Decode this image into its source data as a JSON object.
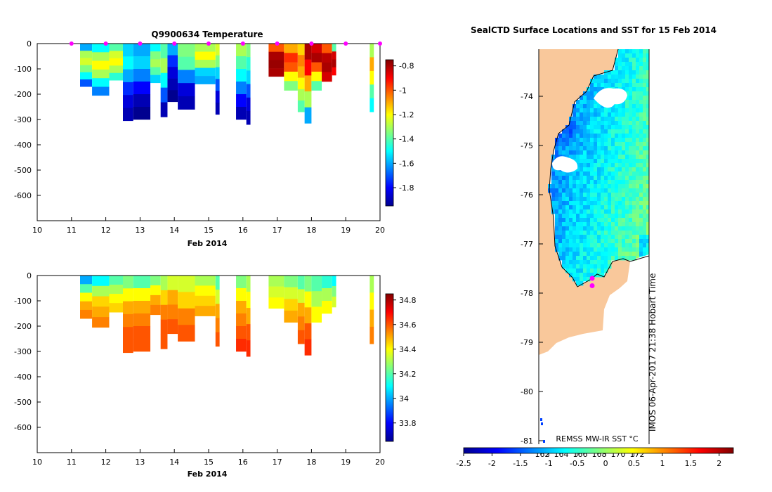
{
  "colors": {
    "land": "#f9c89b",
    "marker": "#ff00ff",
    "jet": [
      "#00008f",
      "#0000ff",
      "#0080ff",
      "#00ffff",
      "#80ff80",
      "#ffff00",
      "#ff8000",
      "#ff0000",
      "#800000"
    ]
  },
  "chart_data": [
    {
      "type": "heatmap",
      "title": "Q9900634  Temperature",
      "xlabel": "Feb 2014",
      "ylabel": "",
      "xticks": [
        "10",
        "11",
        "12",
        "13",
        "14",
        "15",
        "16",
        "17",
        "18",
        "19",
        "20"
      ],
      "yticks": [
        "0",
        "-100",
        "-200",
        "-300",
        "-400",
        "-500",
        "-600"
      ],
      "xlim": [
        10,
        20
      ],
      "ylim": [
        -700,
        0
      ],
      "colorbar": {
        "ticks": [
          "-0.8",
          "-1",
          "-1.2",
          "-1.4",
          "-1.6",
          "-1.8"
        ],
        "range": [
          -1.95,
          -0.75
        ]
      },
      "profiles": [
        {
          "t": 11.25,
          "depth": 170,
          "values": [
            -1.6,
            -1.3,
            -1.25,
            -1.35,
            -1.5,
            -1.7
          ]
        },
        {
          "t": 11.6,
          "depth": 205,
          "values": [
            -1.5,
            -1.3,
            -1.2,
            -1.3,
            -1.5,
            -1.65
          ]
        },
        {
          "t": 12.1,
          "depth": 145,
          "values": [
            -1.4,
            -1.25,
            -1.2,
            -1.3,
            -1.45
          ]
        },
        {
          "t": 12.5,
          "depth": 305,
          "values": [
            -1.55,
            -1.5,
            -1.6,
            -1.75,
            -1.85,
            -1.9
          ]
        },
        {
          "t": 12.8,
          "depth": 300,
          "values": [
            -1.6,
            -1.55,
            -1.65,
            -1.8,
            -1.9,
            -1.95
          ]
        },
        {
          "t": 13.3,
          "depth": 155,
          "values": [
            -1.5,
            -1.35,
            -1.3,
            -1.4,
            -1.55
          ]
        },
        {
          "t": 13.6,
          "depth": 290,
          "values": [
            -1.4,
            -1.3,
            -1.5,
            -1.7,
            -1.9
          ]
        },
        {
          "t": 13.8,
          "depth": 230,
          "values": [
            -1.6,
            -1.75,
            -1.85,
            -1.9,
            -1.95
          ]
        },
        {
          "t": 14.1,
          "depth": 260,
          "values": [
            -1.35,
            -1.4,
            -1.65,
            -1.85,
            -1.9
          ]
        },
        {
          "t": 14.6,
          "depth": 160,
          "values": [
            -1.3,
            -1.2,
            -1.3,
            -1.55,
            -1.6
          ]
        },
        {
          "t": 15.2,
          "depth": 280,
          "values": [
            -1.25,
            -1.35,
            -1.55,
            -1.7,
            -1.85,
            -1.9
          ]
        },
        {
          "t": 15.8,
          "depth": 300,
          "values": [
            -1.3,
            -1.4,
            -1.5,
            -1.65,
            -1.8,
            -1.9
          ]
        },
        {
          "t": 16.1,
          "depth": 320,
          "values": [
            -1.35,
            -1.45,
            -1.55,
            -1.7,
            -1.85,
            -1.9
          ]
        },
        {
          "t": 16.75,
          "depth": 130,
          "values": [
            -1.0,
            -0.8,
            -0.78,
            -0.8
          ]
        },
        {
          "t": 17.2,
          "depth": 185,
          "values": [
            -1.1,
            -0.95,
            -1.0,
            -1.2,
            -1.35
          ]
        },
        {
          "t": 17.6,
          "depth": 270,
          "values": [
            -1.15,
            -1.05,
            -1.1,
            -1.2,
            -1.3,
            -1.4
          ]
        },
        {
          "t": 17.8,
          "depth": 315,
          "values": [
            -0.8,
            -0.9,
            -1.1,
            -1.3,
            -1.6
          ]
        },
        {
          "t": 18.0,
          "depth": 185,
          "values": [
            -0.85,
            -0.8,
            -1.0,
            -1.2,
            -1.4
          ]
        },
        {
          "t": 18.3,
          "depth": 150,
          "values": [
            -1.0,
            -0.82,
            -0.8,
            -0.85
          ]
        },
        {
          "t": 18.6,
          "depth": 125,
          "values": [
            -1.4,
            -0.85,
            -0.8,
            -0.9
          ]
        },
        {
          "t": 19.7,
          "depth": 270,
          "values": [
            -1.3,
            -1.1,
            -1.2,
            -1.4,
            -1.5
          ]
        }
      ],
      "surface_markers": [
        11,
        12,
        13,
        14,
        15,
        16,
        17,
        18,
        19,
        20
      ]
    },
    {
      "type": "heatmap",
      "title": "",
      "xlabel": "Feb 2014",
      "ylabel": "",
      "xticks": [
        "10",
        "11",
        "12",
        "13",
        "14",
        "15",
        "16",
        "17",
        "18",
        "19",
        "20"
      ],
      "yticks": [
        "0",
        "-100",
        "-200",
        "-300",
        "-400",
        "-500",
        "-600"
      ],
      "xlim": [
        10,
        20
      ],
      "ylim": [
        -700,
        0
      ],
      "colorbar": {
        "ticks": [
          "34.8",
          "34.6",
          "34.4",
          "34.2",
          "34",
          "33.8"
        ],
        "range": [
          33.65,
          34.85
        ]
      },
      "profiles": [
        {
          "t": 11.25,
          "depth": 170,
          "values": [
            34.0,
            34.2,
            34.4,
            34.5,
            34.55
          ]
        },
        {
          "t": 11.6,
          "depth": 205,
          "values": [
            34.1,
            34.3,
            34.45,
            34.5,
            34.55
          ]
        },
        {
          "t": 12.1,
          "depth": 145,
          "values": [
            34.2,
            34.3,
            34.4,
            34.45
          ]
        },
        {
          "t": 12.5,
          "depth": 305,
          "values": [
            34.25,
            34.4,
            34.5,
            34.55,
            34.6,
            34.6
          ]
        },
        {
          "t": 12.8,
          "depth": 300,
          "values": [
            34.2,
            34.4,
            34.5,
            34.55,
            34.6,
            34.6
          ]
        },
        {
          "t": 13.3,
          "depth": 155,
          "values": [
            34.25,
            34.4,
            34.5,
            34.55
          ]
        },
        {
          "t": 13.6,
          "depth": 290,
          "values": [
            34.3,
            34.45,
            34.55,
            34.6,
            34.6
          ]
        },
        {
          "t": 13.8,
          "depth": 230,
          "values": [
            34.35,
            34.5,
            34.55,
            34.6
          ]
        },
        {
          "t": 14.1,
          "depth": 260,
          "values": [
            34.35,
            34.45,
            34.55,
            34.6
          ]
        },
        {
          "t": 14.6,
          "depth": 160,
          "values": [
            34.3,
            34.4,
            34.45,
            34.5
          ]
        },
        {
          "t": 15.2,
          "depth": 280,
          "values": [
            34.2,
            34.35,
            34.5,
            34.55,
            34.6
          ]
        },
        {
          "t": 15.8,
          "depth": 300,
          "values": [
            34.25,
            34.4,
            34.5,
            34.55,
            34.6,
            34.65
          ]
        },
        {
          "t": 16.1,
          "depth": 320,
          "values": [
            34.3,
            34.4,
            34.5,
            34.6,
            34.65
          ]
        },
        {
          "t": 16.75,
          "depth": 130,
          "values": [
            34.3,
            34.35,
            34.4
          ]
        },
        {
          "t": 17.2,
          "depth": 185,
          "values": [
            34.25,
            34.35,
            34.45,
            34.5
          ]
        },
        {
          "t": 17.6,
          "depth": 270,
          "values": [
            34.2,
            34.35,
            34.5,
            34.55,
            34.6
          ]
        },
        {
          "t": 17.8,
          "depth": 315,
          "values": [
            34.25,
            34.4,
            34.5,
            34.6,
            34.65
          ]
        },
        {
          "t": 18.0,
          "depth": 185,
          "values": [
            34.2,
            34.3,
            34.4
          ]
        },
        {
          "t": 18.3,
          "depth": 150,
          "values": [
            34.15,
            34.3,
            34.4
          ]
        },
        {
          "t": 18.6,
          "depth": 125,
          "values": [
            34.1,
            34.25,
            34.35
          ]
        },
        {
          "t": 19.7,
          "depth": 270,
          "values": [
            34.3,
            34.4,
            34.5,
            34.55
          ]
        }
      ],
      "surface_markers": []
    },
    {
      "type": "heatmap",
      "title": "SealCTD Surface Locations and SST for 15 Feb 2014",
      "ylabel": "",
      "yticks": [
        "-74",
        "-75",
        "-76",
        "-77",
        "-78",
        "-79",
        "-80",
        "-81"
      ],
      "ylim": [
        -81.2,
        -73.0
      ],
      "colorbar": {
        "label": "REMSS MW-IR SST °C",
        "ticks": [
          "-2.5",
          "-2",
          "-1.5",
          "-1",
          "-0.5",
          "0",
          "0.5",
          "1",
          "1.5",
          "2"
        ],
        "range": [
          -2.5,
          2.25
        ],
        "longitude_ticks": [
          "162",
          "164",
          "166",
          "168",
          "170",
          "172"
        ]
      },
      "stamp": "IMOS 06-Apr-2017 21:38 Hobart Time",
      "surface_locations_lat": [
        -77.7,
        -77.85
      ]
    }
  ]
}
